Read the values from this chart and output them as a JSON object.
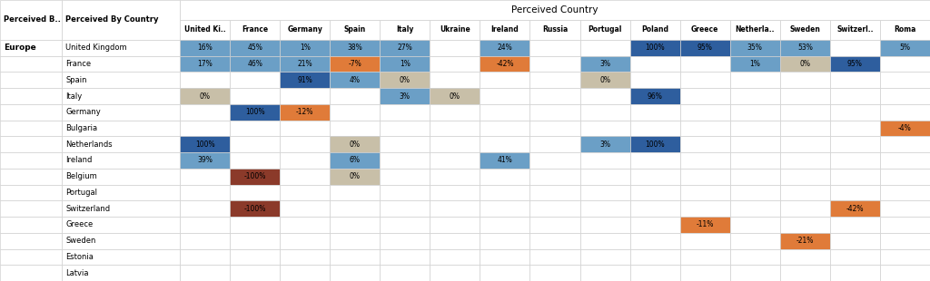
{
  "title": "Perceived Country",
  "col1_header": "Perceived B..",
  "col2_header": "Perceived By Country",
  "group_label": "Europe",
  "columns": [
    "United Ki..",
    "France",
    "Germany",
    "Spain",
    "Italy",
    "Ukraine",
    "Ireland",
    "Russia",
    "Portugal",
    "Poland",
    "Greece",
    "Netherla..",
    "Sweden",
    "Switzerl..",
    "Roma"
  ],
  "rows": [
    "United Kingdom",
    "France",
    "Spain",
    "Italy",
    "Germany",
    "Bulgaria",
    "Netherlands",
    "Ireland",
    "Belgium",
    "Portugal",
    "Switzerland",
    "Greece",
    "Sweden",
    "Estonia",
    "Latvia"
  ],
  "data": {
    "United Kingdom": {
      "United Ki..": [
        16,
        "light_blue"
      ],
      "France": [
        45,
        "light_blue"
      ],
      "Germany": [
        1,
        "light_blue"
      ],
      "Spain": [
        38,
        "light_blue"
      ],
      "Italy": [
        27,
        "light_blue"
      ],
      "Ireland": [
        24,
        "light_blue"
      ],
      "Poland": [
        100,
        "dark_blue"
      ],
      "Greece": [
        95,
        "dark_blue"
      ],
      "Netherla..": [
        35,
        "light_blue"
      ],
      "Sweden": [
        53,
        "light_blue"
      ],
      "Roma": [
        5,
        "light_blue"
      ]
    },
    "France": {
      "United Ki..": [
        17,
        "light_blue"
      ],
      "France": [
        46,
        "light_blue"
      ],
      "Germany": [
        21,
        "light_blue"
      ],
      "Spain": [
        -7,
        "orange"
      ],
      "Italy": [
        1,
        "light_blue"
      ],
      "Ireland": [
        -42,
        "orange"
      ],
      "Portugal": [
        3,
        "light_blue"
      ],
      "Netherla..": [
        1,
        "light_blue"
      ],
      "Sweden": [
        0,
        "beige"
      ],
      "Switzerl..": [
        95,
        "dark_blue"
      ]
    },
    "Spain": {
      "Germany": [
        91,
        "dark_blue"
      ],
      "Spain": [
        4,
        "light_blue"
      ],
      "Italy": [
        0,
        "beige"
      ],
      "Portugal": [
        0,
        "beige"
      ]
    },
    "Italy": {
      "United Ki..": [
        0,
        "beige"
      ],
      "Italy": [
        3,
        "light_blue"
      ],
      "Ukraine": [
        0,
        "beige"
      ],
      "Poland": [
        96,
        "dark_blue"
      ]
    },
    "Germany": {
      "France": [
        100,
        "dark_blue"
      ],
      "Germany": [
        -12,
        "orange"
      ]
    },
    "Bulgaria": {
      "Roma": [
        -4,
        "orange"
      ]
    },
    "Netherlands": {
      "United Ki..": [
        100,
        "dark_blue"
      ],
      "Spain": [
        0,
        "beige"
      ],
      "Portugal": [
        3,
        "light_blue"
      ],
      "Poland": [
        100,
        "dark_blue"
      ]
    },
    "Ireland": {
      "United Ki..": [
        39,
        "light_blue"
      ],
      "Spain": [
        6,
        "light_blue"
      ],
      "Ireland": [
        41,
        "light_blue"
      ]
    },
    "Belgium": {
      "France": [
        -100,
        "dark_red"
      ],
      "Spain": [
        0,
        "beige"
      ]
    },
    "Portugal": {},
    "Switzerland": {
      "France": [
        -100,
        "dark_red"
      ],
      "Switzerl..": [
        -42,
        "orange"
      ]
    },
    "Greece": {
      "Greece": [
        -11,
        "orange"
      ]
    },
    "Sweden": {
      "Sweden": [
        -21,
        "orange"
      ]
    },
    "Estonia": {},
    "Latvia": {}
  },
  "colors": {
    "dark_blue": "#2E5E9E",
    "light_blue": "#6B9FC6",
    "beige": "#C8BFA8",
    "orange": "#E07B39",
    "dark_red": "#8B3A2A",
    "grid_color": "#D0D0D0",
    "white": "#FFFFFF"
  },
  "figsize": [
    10.24,
    3.1
  ],
  "dpi": 100
}
